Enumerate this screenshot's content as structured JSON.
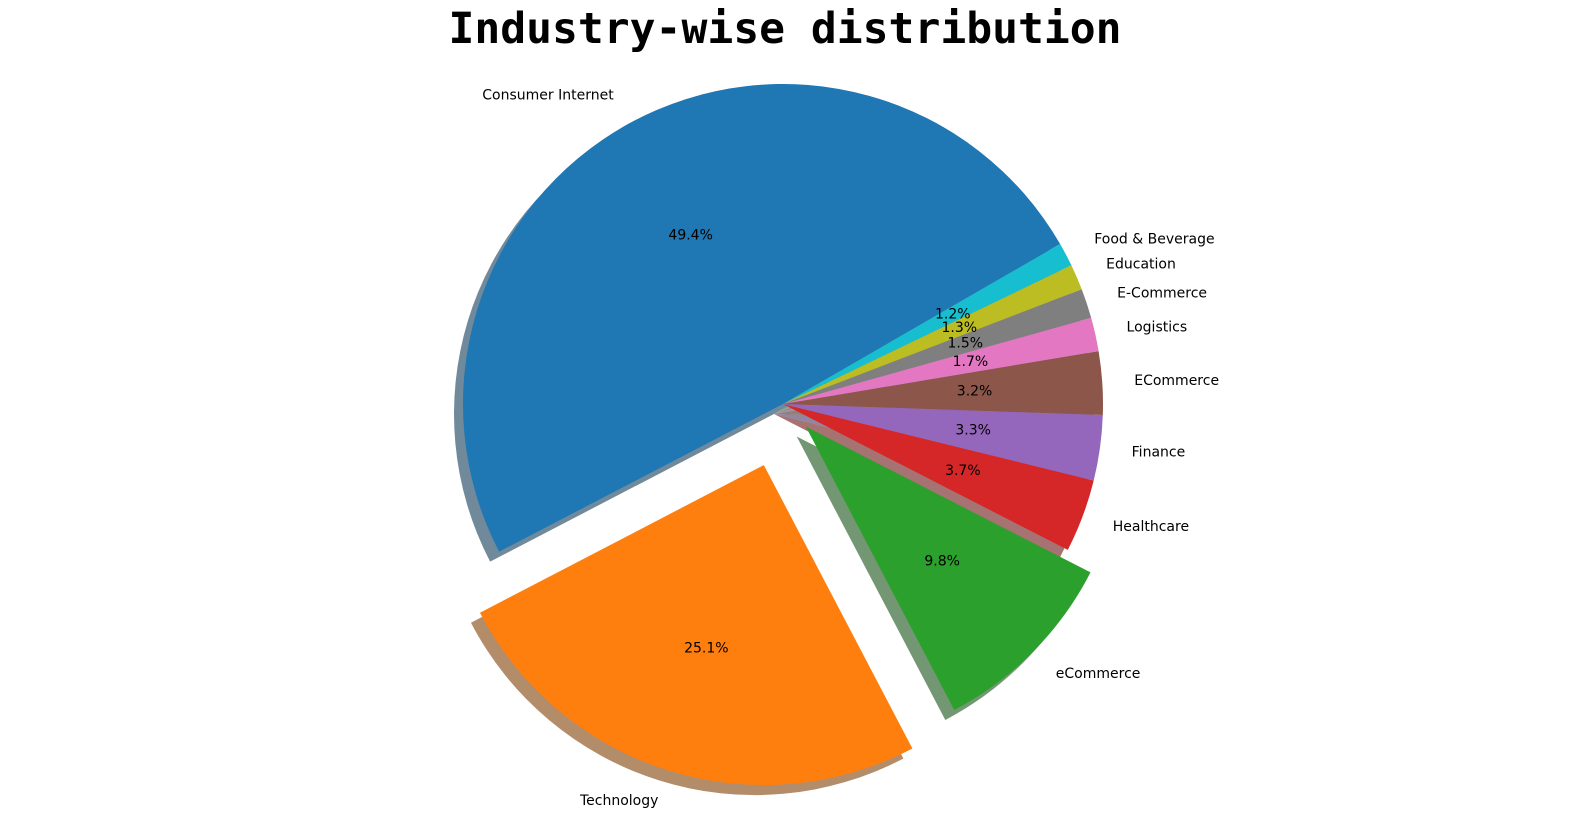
{
  "chart_data": {
    "type": "pie",
    "title": "Industry-wise distribution",
    "categories": [
      "Consumer Internet",
      "Technology",
      "eCommerce",
      "Healthcare",
      "Finance",
      "ECommerce",
      "Logistics",
      "E-Commerce",
      "Education",
      "Food & Beverage"
    ],
    "values": [
      49.4,
      25.1,
      9.8,
      3.7,
      3.3,
      3.2,
      1.7,
      1.5,
      1.3,
      1.2
    ],
    "percent_labels": [
      "49.4%",
      "25.1%",
      "9.8%",
      "3.7%",
      "3.3%",
      "3.2%",
      "1.7%",
      "1.5%",
      "1.3%",
      "1.2%"
    ],
    "colors": [
      "#1f77b4",
      "#ff7f0e",
      "#2ca02c",
      "#d62728",
      "#9467bd",
      "#8c564b",
      "#e377c2",
      "#7f7f7f",
      "#bcbd22",
      "#17becf"
    ],
    "exploded": [
      0,
      0.2,
      0.1,
      0,
      0,
      0,
      0,
      0,
      0,
      0
    ],
    "start_angle_deg": 30,
    "shadow": true,
    "legend": "none"
  }
}
